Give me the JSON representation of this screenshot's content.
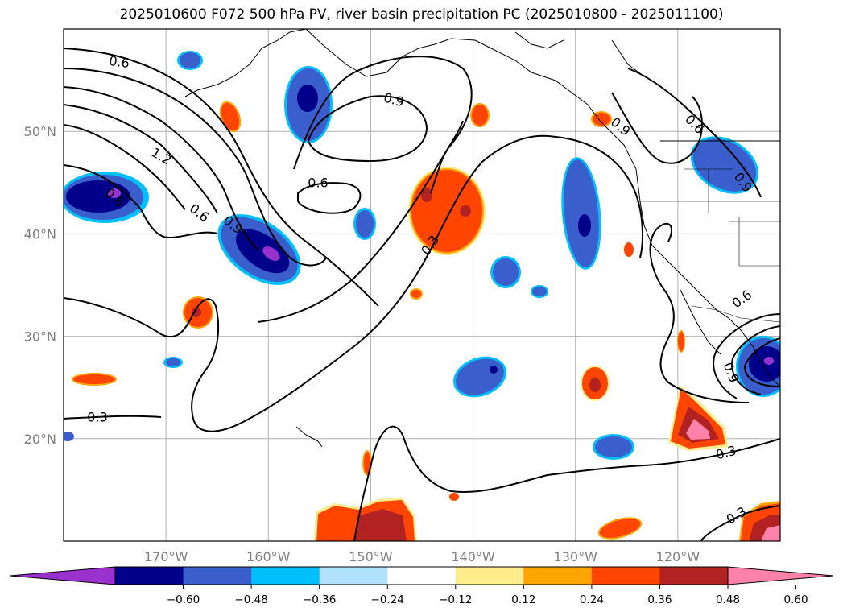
{
  "title": "2025010600 F072 500 hPa PV, river basin precipitation PC (2025010800 - 2025011100)",
  "map": {
    "lon_range": [
      -180,
      -110
    ],
    "lat_range": [
      10,
      60
    ],
    "lon_ticks": [
      -170,
      -160,
      -150,
      -140,
      -130,
      -120
    ],
    "lon_labels": [
      "170°W",
      "160°W",
      "150°W",
      "140°W",
      "130°W",
      "120°W"
    ],
    "lat_ticks": [
      20,
      30,
      40,
      50
    ],
    "lat_labels": [
      "20°N",
      "30°N",
      "40°N",
      "50°N"
    ],
    "grid": true,
    "coastline_color": "#000000",
    "contour_labels": [
      "0.6",
      "0.9",
      "1.2",
      "0.6",
      "0.9",
      "0.6",
      "0.3",
      "0.3",
      "0.9",
      "0.6",
      "0.6",
      "0.9",
      "0.6",
      "0.9",
      "0.3",
      "0.3"
    ]
  },
  "colorbar": {
    "ticks": [
      "−0.60",
      "−0.48",
      "−0.36",
      "−0.24",
      "−0.12",
      "0.12",
      "0.24",
      "0.36",
      "0.48",
      "0.60"
    ],
    "colors": [
      "#9932cc",
      "#00008b",
      "#3a5fcd",
      "#00bfff",
      "#b0e2ff",
      "#ffffff",
      "#ffec8b",
      "#ffa500",
      "#ff4500",
      "#b22222",
      "#ff82ab"
    ],
    "extend": "both"
  }
}
